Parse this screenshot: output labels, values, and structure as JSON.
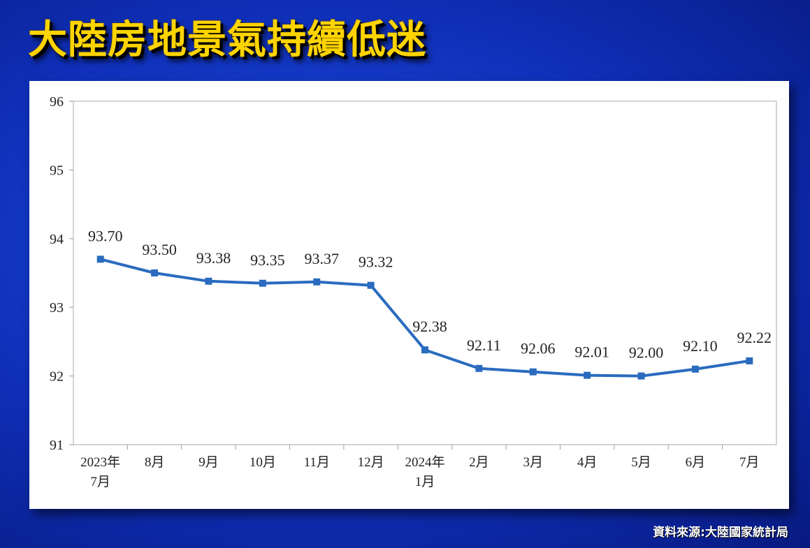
{
  "headline": "大陸房地景氣持續低迷",
  "source": "資料來源:大陸國家統計局",
  "colors": {
    "line": "#2a6bbf",
    "headline": "#ffd400",
    "background": "#1a45d8"
  },
  "chart_data": {
    "type": "line",
    "title": "",
    "xlabel": "",
    "ylabel": "",
    "ylim": [
      91,
      96
    ],
    "yticks": [
      91,
      92,
      93,
      94,
      95,
      96
    ],
    "grid": false,
    "categories": [
      [
        "2023年",
        "7月"
      ],
      [
        "8月"
      ],
      [
        "9月"
      ],
      [
        "10月"
      ],
      [
        "11月"
      ],
      [
        "12月"
      ],
      [
        "2024年",
        "1月"
      ],
      [
        "2月"
      ],
      [
        "3月"
      ],
      [
        "4月"
      ],
      [
        "5月"
      ],
      [
        "6月"
      ],
      [
        "7月"
      ]
    ],
    "series": [
      {
        "values": [
          93.7,
          93.5,
          93.38,
          93.35,
          93.37,
          93.32,
          92.38,
          92.11,
          92.06,
          92.01,
          92.0,
          92.1,
          92.22
        ],
        "labels": [
          "93.70",
          "93.50",
          "93.38",
          "93.35",
          "93.37",
          "93.32",
          "92.38",
          "92.11",
          "92.06",
          "92.01",
          "92.00",
          "92.10",
          "92.22"
        ]
      }
    ]
  }
}
